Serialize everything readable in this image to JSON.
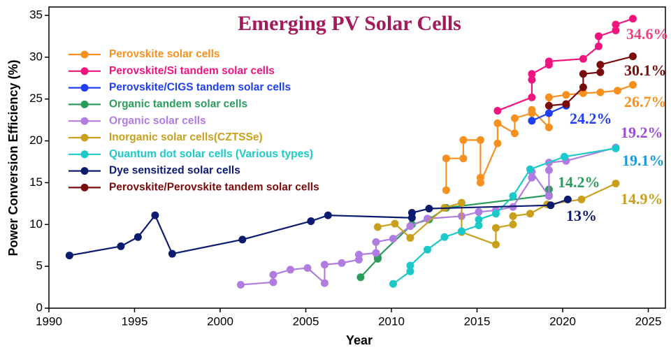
{
  "chart_data": {
    "type": "line",
    "title": "Emerging PV Solar Cells",
    "x_label": "Year",
    "y_label": "Power Conversion Efficiency (%)",
    "xlim": [
      1990,
      2026
    ],
    "ylim": [
      0,
      36
    ],
    "xticks": [
      1990,
      1995,
      2000,
      2005,
      2010,
      2015,
      2020,
      2025
    ],
    "yticks": [
      0,
      5,
      10,
      15,
      20,
      25,
      30,
      35
    ],
    "legend": "upper left",
    "series": [
      {
        "name": "Perovskite solar cells",
        "color": "#f7901e",
        "x": [
          2013.2,
          2013.2,
          2014.2,
          2014.2,
          2015.2,
          2015.2,
          2015.2,
          2016.2,
          2016.2,
          2017.2,
          2017.2,
          2018.2,
          2018.2,
          2019.2,
          2019.2,
          2020.2,
          2021.2,
          2022.2,
          2023.2,
          2024.1
        ],
        "values": [
          14.1,
          17.9,
          17.9,
          20.1,
          20.1,
          15.6,
          15.0,
          19.7,
          22.1,
          20.9,
          22.7,
          23.3,
          23.7,
          21.6,
          25.2,
          25.5,
          25.7,
          25.8,
          26.0,
          26.7
        ]
      },
      {
        "name": "Perovskite/Si tandem solar cells",
        "color": "#f0147f",
        "x": [
          2016.2,
          2018.2,
          2018.2,
          2018.2,
          2019.2,
          2019.2,
          2021.2,
          2022.1,
          2022.1,
          2023.1,
          2023.1,
          2024.1
        ],
        "values": [
          23.6,
          25.2,
          27.3,
          28.0,
          29.1,
          29.5,
          29.8,
          31.3,
          32.5,
          33.2,
          33.9,
          34.6
        ]
      },
      {
        "name": "Perovskite/CIGS tandem solar cells",
        "color": "#1f3ff0",
        "x": [
          2018.2,
          2019.2,
          2020.2
        ],
        "values": [
          22.4,
          23.3,
          24.2
        ]
      },
      {
        "name": "Organic tandem solar cells",
        "color": "#2a9d5c",
        "x": [
          2008.2,
          2009.2,
          2009.2,
          2011.2,
          2012.2,
          2013.2,
          2019.2,
          2019.2
        ],
        "values": [
          3.7,
          5.9,
          6.1,
          10.0,
          10.6,
          12.0,
          13.5,
          14.2
        ]
      },
      {
        "name": "Organic solar cells",
        "color": "#b07ce0",
        "x": [
          2001.2,
          2003.1,
          2003.1,
          2004.1,
          2005.1,
          2006.1,
          2006.1,
          2007.1,
          2008.1,
          2008.1,
          2009.1,
          2009.1,
          2010.1,
          2011.1,
          2012.1,
          2014.1,
          2015.1,
          2016.1,
          2017.1,
          2018.2,
          2018.2,
          2019.2,
          2019.2,
          2019.2,
          2020.2,
          2023.1
        ],
        "values": [
          2.8,
          3.1,
          4.0,
          4.6,
          4.8,
          3.0,
          5.2,
          5.4,
          5.8,
          6.4,
          6.6,
          7.9,
          8.3,
          9.8,
          10.7,
          11.0,
          11.5,
          11.7,
          12.1,
          15.6,
          16.3,
          13.4,
          16.5,
          17.4,
          17.6,
          19.2
        ]
      },
      {
        "name": "Inorganic solar cells(CZTSSe)",
        "color": "#c9a01c",
        "x": [
          2009.2,
          2010.2,
          2011.1,
          2013.1,
          2014.1,
          2014.1,
          2016.1,
          2016.1,
          2017.1,
          2017.1,
          2018.1,
          2019.1,
          2021.1,
          2023.1
        ],
        "values": [
          9.7,
          10.1,
          8.4,
          12.0,
          12.6,
          9.1,
          7.6,
          9.6,
          10.0,
          11.0,
          11.3,
          12.4,
          13.0,
          14.9
        ]
      },
      {
        "name": "Quantum dot solar cells (Various types)",
        "color": "#1cc9c9",
        "x": [
          2010.1,
          2011.1,
          2011.1,
          2012.1,
          2013.1,
          2014.1,
          2015.1,
          2015.1,
          2016.1,
          2017.1,
          2018.1,
          2020.1,
          2023.1
        ],
        "values": [
          2.9,
          4.4,
          5.1,
          7.0,
          8.5,
          9.2,
          9.9,
          10.6,
          11.3,
          13.4,
          16.6,
          18.1,
          19.1
        ]
      },
      {
        "name": "Dye sensitized solar cells",
        "color": "#0d1b6e",
        "x": [
          1991.2,
          1994.2,
          1995.2,
          1996.2,
          1997.2,
          2001.3,
          2005.3,
          2006.3,
          2011.2,
          2011.2,
          2012.2,
          2019.3,
          2020.3
        ],
        "values": [
          6.3,
          7.4,
          8.5,
          11.1,
          6.5,
          8.2,
          10.4,
          11.1,
          10.8,
          11.4,
          11.9,
          12.3,
          13.0
        ]
      },
      {
        "name": "Perovskite/Perovskite tandem solar cells",
        "color": "#7a0c0c",
        "x": [
          2019.2,
          2020.2,
          2021.2,
          2021.2,
          2022.2,
          2022.2,
          2024.1
        ],
        "values": [
          24.2,
          24.4,
          26.4,
          28.0,
          28.2,
          29.1,
          30.1
        ]
      }
    ],
    "annotations": [
      {
        "text": "34.6%",
        "color": "#f0427f"
      },
      {
        "text": "30.1%",
        "color": "#7a0c0c"
      },
      {
        "text": "26.7%",
        "color": "#f7901e"
      },
      {
        "text": "24.2%",
        "color": "#1f3ff0"
      },
      {
        "text": "19.2%",
        "color": "#9b4fd8"
      },
      {
        "text": "19.1%",
        "color": "#1a9ad6"
      },
      {
        "text": "14.2%",
        "color": "#2a9d5c"
      },
      {
        "text": "14.9%",
        "color": "#c9a01c"
      },
      {
        "text": "13%",
        "color": "#0d1b6e"
      }
    ]
  }
}
